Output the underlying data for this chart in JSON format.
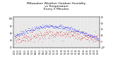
{
  "title": "Milwaukee Weather Outdoor Humidity\nvs Temperature\nEvery 5 Minutes",
  "title_fontsize": 3.2,
  "background_color": "#ffffff",
  "plot_bg_color": "#e8e8e8",
  "grid_color": "#ffffff",
  "blue_color": "#0000ff",
  "red_color": "#cc0000",
  "ylim_left": [
    20,
    105
  ],
  "ylim_right": [
    -10,
    40
  ],
  "num_points": 288,
  "seed": 7
}
